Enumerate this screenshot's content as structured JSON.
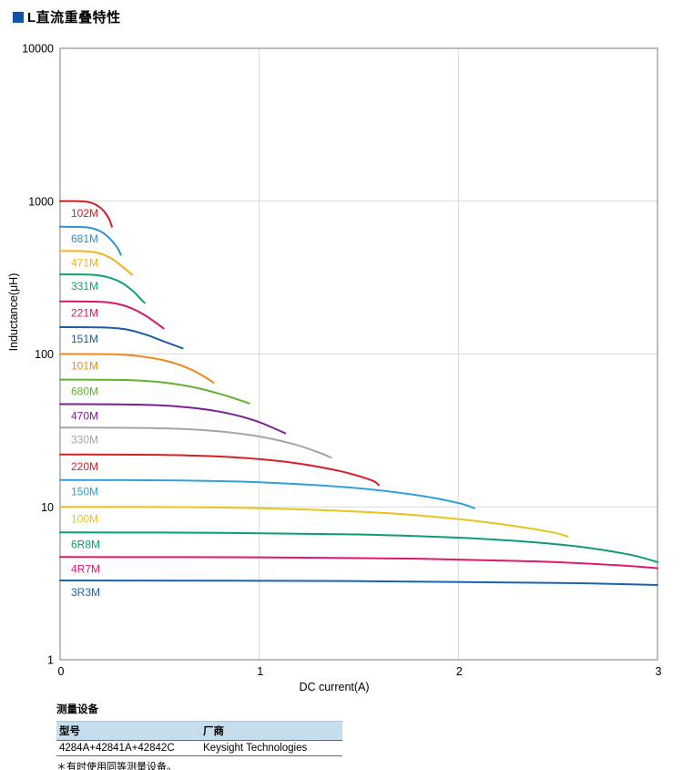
{
  "header": {
    "title": "L直流重叠特性",
    "marker_color": "#0e55a7"
  },
  "chart_data": {
    "type": "line",
    "title": "",
    "xlabel": "DC current(A)",
    "ylabel": "Inductance(μH)",
    "xlim": [
      0,
      3
    ],
    "ylim": [
      1,
      10000
    ],
    "y_scale": "log",
    "x_ticks": [
      "0",
      "1",
      "2",
      "3"
    ],
    "y_ticks": [
      "10000",
      "1000",
      "100",
      "10",
      "1"
    ],
    "grid": true,
    "grid_color": "#d9d9d9",
    "frame_color": "#9b9b9b",
    "tick_color": "#000000",
    "legend_position": "inline-labels",
    "series": [
      {
        "name": "102M",
        "color": "#d02128",
        "points": [
          [
            0,
            1000
          ],
          [
            0.09,
            1000
          ],
          [
            0.15,
            980
          ],
          [
            0.19,
            930
          ],
          [
            0.22,
            860
          ],
          [
            0.245,
            770
          ],
          [
            0.26,
            680
          ]
        ]
      },
      {
        "name": "681M",
        "color": "#2f92d1",
        "points": [
          [
            0,
            680
          ],
          [
            0.11,
            678
          ],
          [
            0.17,
            660
          ],
          [
            0.22,
            615
          ],
          [
            0.26,
            550
          ],
          [
            0.29,
            490
          ],
          [
            0.305,
            445
          ]
        ]
      },
      {
        "name": "471M",
        "color": "#eeb41d",
        "points": [
          [
            0,
            472
          ],
          [
            0.13,
            470
          ],
          [
            0.2,
            455
          ],
          [
            0.26,
            420
          ],
          [
            0.31,
            375
          ],
          [
            0.35,
            340
          ],
          [
            0.362,
            330
          ]
        ]
      },
      {
        "name": "331M",
        "color": "#10a26b",
        "points": [
          [
            0,
            332
          ],
          [
            0.16,
            330
          ],
          [
            0.24,
            318
          ],
          [
            0.31,
            292
          ],
          [
            0.37,
            255
          ],
          [
            0.41,
            225
          ],
          [
            0.425,
            216
          ]
        ]
      },
      {
        "name": "221M",
        "color": "#d3186f",
        "points": [
          [
            0,
            221
          ],
          [
            0.19,
            220
          ],
          [
            0.28,
            214
          ],
          [
            0.36,
            199
          ],
          [
            0.43,
            178
          ],
          [
            0.49,
            157
          ],
          [
            0.52,
            147
          ]
        ]
      },
      {
        "name": "151M",
        "color": "#1d5ca6",
        "points": [
          [
            0,
            150
          ],
          [
            0.22,
            149
          ],
          [
            0.33,
            145
          ],
          [
            0.43,
            134
          ],
          [
            0.52,
            121
          ],
          [
            0.59,
            112
          ],
          [
            0.615,
            109
          ]
        ]
      },
      {
        "name": "101M",
        "color": "#ee8a1c",
        "points": [
          [
            0,
            100
          ],
          [
            0.28,
            99.5
          ],
          [
            0.42,
            96
          ],
          [
            0.55,
            89
          ],
          [
            0.66,
            79
          ],
          [
            0.74,
            69
          ],
          [
            0.77,
            65
          ]
        ]
      },
      {
        "name": "680M",
        "color": "#62b22c",
        "points": [
          [
            0,
            68
          ],
          [
            0.33,
            67.6
          ],
          [
            0.5,
            65.5
          ],
          [
            0.66,
            61
          ],
          [
            0.8,
            55
          ],
          [
            0.91,
            49.5
          ],
          [
            0.95,
            47.5
          ]
        ]
      },
      {
        "name": "470M",
        "color": "#7a1f98",
        "points": [
          [
            0,
            47
          ],
          [
            0.38,
            46.7
          ],
          [
            0.6,
            45.3
          ],
          [
            0.8,
            42
          ],
          [
            0.97,
            37
          ],
          [
            1.09,
            32
          ],
          [
            1.13,
            30.3
          ]
        ]
      },
      {
        "name": "330M",
        "color": "#a5a5a5",
        "points": [
          [
            0,
            33
          ],
          [
            0.45,
            32.8
          ],
          [
            0.72,
            31.8
          ],
          [
            0.97,
            29.3
          ],
          [
            1.17,
            25.8
          ],
          [
            1.31,
            22.4
          ],
          [
            1.36,
            21
          ]
        ]
      },
      {
        "name": "220M",
        "color": "#d42127",
        "points": [
          [
            0,
            22
          ],
          [
            0.5,
            21.9
          ],
          [
            0.85,
            21.2
          ],
          [
            1.15,
            19.6
          ],
          [
            1.4,
            17.2
          ],
          [
            1.56,
            15
          ],
          [
            1.6,
            13.9
          ]
        ]
      },
      {
        "name": "150M",
        "color": "#32a0da",
        "points": [
          [
            0,
            15
          ],
          [
            0.6,
            14.9
          ],
          [
            1.05,
            14.4
          ],
          [
            1.45,
            13.4
          ],
          [
            1.78,
            12
          ],
          [
            2.0,
            10.6
          ],
          [
            2.08,
            9.8
          ]
        ]
      },
      {
        "name": "100M",
        "color": "#e7c31d",
        "points": [
          [
            0,
            10
          ],
          [
            0.7,
            9.95
          ],
          [
            1.25,
            9.6
          ],
          [
            1.75,
            8.9
          ],
          [
            2.15,
            7.9
          ],
          [
            2.45,
            6.9
          ],
          [
            2.55,
            6.4
          ]
        ]
      },
      {
        "name": "6R8M",
        "color": "#0d9c78",
        "points": [
          [
            0,
            6.8
          ],
          [
            0.8,
            6.77
          ],
          [
            1.5,
            6.6
          ],
          [
            2.1,
            6.2
          ],
          [
            2.55,
            5.6
          ],
          [
            2.85,
            4.9
          ],
          [
            3.0,
            4.35
          ]
        ]
      },
      {
        "name": "4R7M",
        "color": "#e0176e",
        "points": [
          [
            0,
            4.7
          ],
          [
            1.0,
            4.68
          ],
          [
            1.8,
            4.58
          ],
          [
            2.4,
            4.4
          ],
          [
            2.8,
            4.15
          ],
          [
            3.0,
            3.97
          ]
        ]
      },
      {
        "name": "3R3M",
        "color": "#1b63ae",
        "points": [
          [
            0,
            3.3
          ],
          [
            1.5,
            3.27
          ],
          [
            2.5,
            3.18
          ],
          [
            3.0,
            3.08
          ]
        ]
      }
    ]
  },
  "equipment": {
    "title": "测量设备",
    "headers": [
      "型号",
      "厂商"
    ],
    "rows": [
      [
        "4284A+42841A+42842C",
        "Keysight Technologies"
      ]
    ],
    "footnote": "＊有时使用同等测量设备。",
    "header_bg": "#c5dded"
  }
}
